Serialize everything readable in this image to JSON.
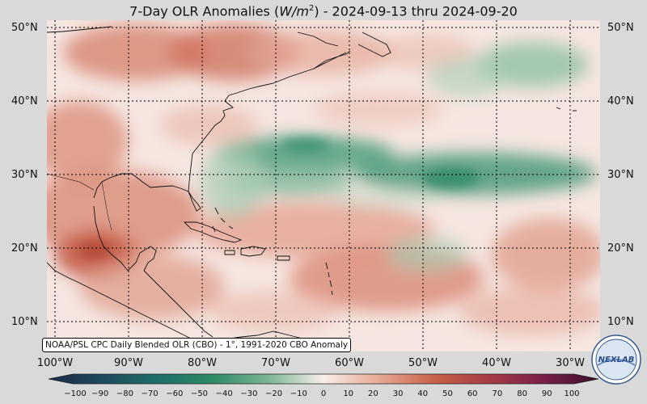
{
  "title": {
    "prefix": "7-Day OLR Anomalies (",
    "unit_base": "W/m",
    "unit_exp": "2",
    "suffix": ") - 2024-09-13 thru 2024-09-20"
  },
  "map": {
    "lat_labels": [
      "50°N",
      "40°N",
      "30°N",
      "20°N",
      "10°N"
    ],
    "lon_labels": [
      "100°W",
      "90°W",
      "80°W",
      "70°W",
      "60°W",
      "50°W",
      "40°W",
      "30°W"
    ],
    "lat_range": [
      6,
      51
    ],
    "lon_range": [
      -101,
      -26
    ],
    "grid_lines": "dotted",
    "source_note": "NOAA/PSL CPC Daily Blended OLR (CBO) - 1°, 1991-2020 CBO Anomaly"
  },
  "colorbar": {
    "ticks": [
      "−100",
      "−90",
      "−80",
      "−70",
      "−60",
      "−50",
      "−40",
      "−30",
      "−20",
      "−10",
      "0",
      "10",
      "20",
      "30",
      "40",
      "50",
      "60",
      "70",
      "80",
      "90",
      "100"
    ],
    "negative_color": "#2e8b66",
    "positive_color": "#c9614a",
    "extreme_negative": "#1a2a48",
    "extreme_positive": "#3a0f2a"
  },
  "logo": {
    "text": "NEXLAB"
  }
}
